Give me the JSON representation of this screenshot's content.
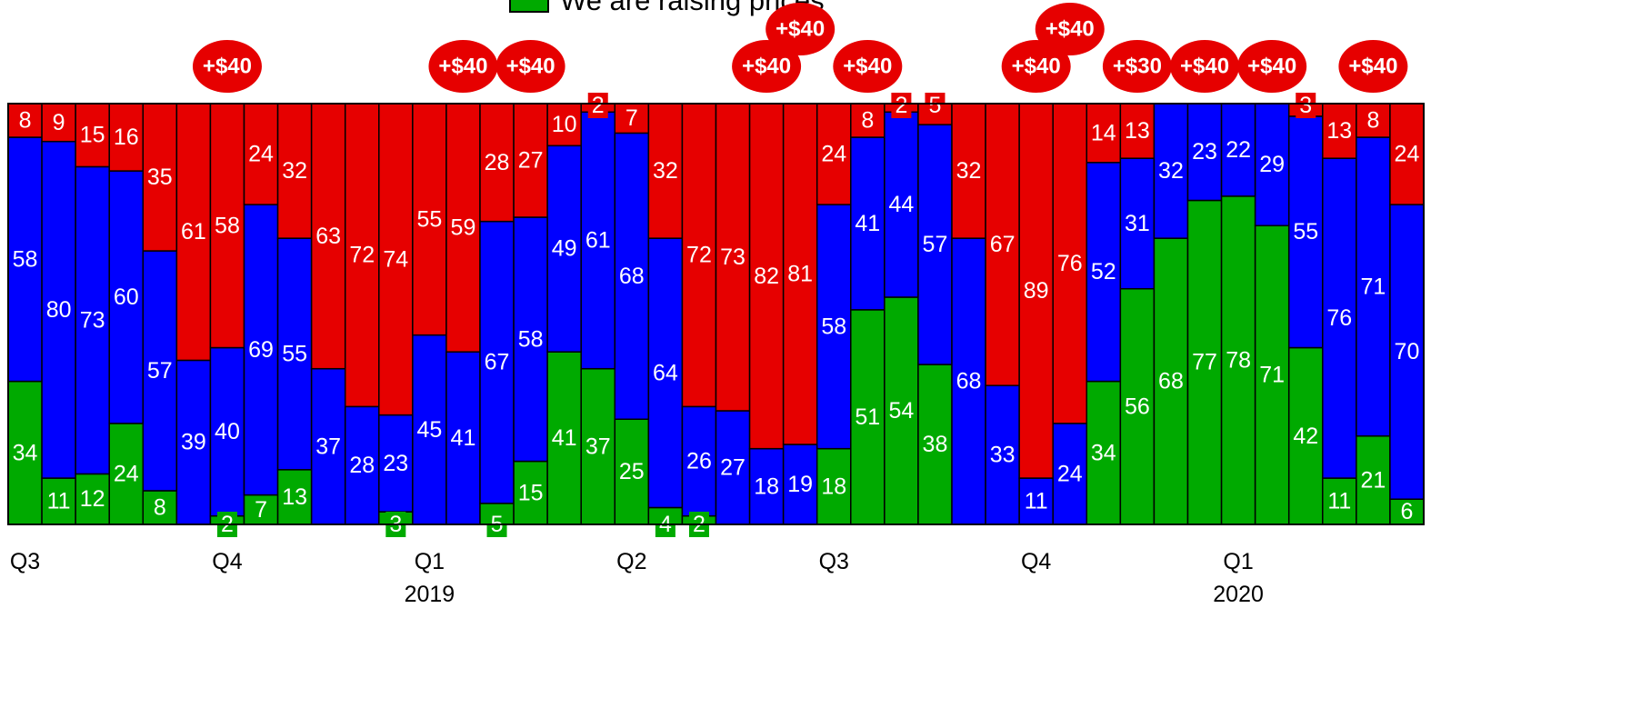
{
  "chart_data": {
    "type": "bar",
    "stacked": "100%",
    "legend": {
      "label": "We are raising prices",
      "color": "#00AA00",
      "placement": "top-center"
    },
    "colors": {
      "green": "#00AA00",
      "blue": "#0000FF",
      "red": "#E60000"
    },
    "series": [
      {
        "name": "We are raising prices",
        "color": "#00AA00",
        "values": [
          34,
          11,
          12,
          24,
          8,
          0,
          2,
          7,
          13,
          0,
          0,
          3,
          0,
          0,
          5,
          15,
          41,
          37,
          25,
          4,
          2,
          0,
          0,
          0,
          18,
          51,
          54,
          38,
          0,
          0,
          0,
          0,
          34,
          56,
          68,
          77,
          78,
          71,
          42,
          11,
          21,
          6
        ]
      },
      {
        "name": "",
        "color": "#0000FF",
        "values": [
          58,
          80,
          73,
          60,
          57,
          39,
          40,
          69,
          55,
          37,
          28,
          23,
          45,
          41,
          67,
          58,
          49,
          61,
          68,
          64,
          26,
          27,
          18,
          19,
          58,
          41,
          44,
          57,
          68,
          33,
          11,
          24,
          52,
          31,
          32,
          23,
          22,
          29,
          55,
          76,
          71,
          70
        ]
      },
      {
        "name": "",
        "color": "#E60000",
        "values": [
          8,
          9,
          15,
          16,
          35,
          61,
          58,
          24,
          32,
          63,
          72,
          74,
          55,
          59,
          28,
          27,
          10,
          2,
          7,
          32,
          72,
          73,
          82,
          81,
          24,
          8,
          2,
          5,
          32,
          67,
          89,
          76,
          14,
          13,
          0,
          0,
          0,
          0,
          3,
          13,
          8,
          24
        ]
      }
    ],
    "price_hikes": [
      {
        "bar": 6,
        "text": "+$40"
      },
      {
        "bar": 13,
        "text": "+$40"
      },
      {
        "bar": 15,
        "text": "+$40"
      },
      {
        "bar": 22,
        "text": "+$40"
      },
      {
        "bar": 23,
        "text": "+$40"
      },
      {
        "bar": 25,
        "text": "+$40"
      },
      {
        "bar": 30,
        "text": "+$40"
      },
      {
        "bar": 31,
        "text": "+$40"
      },
      {
        "bar": 33,
        "text": "+$30"
      },
      {
        "bar": 35,
        "text": "+$40"
      },
      {
        "bar": 37,
        "text": "+$40"
      },
      {
        "bar": 40,
        "text": "+$40"
      }
    ],
    "x_ticks": [
      {
        "bar": 0,
        "label": "Q3"
      },
      {
        "bar": 6,
        "label": "Q4"
      },
      {
        "bar": 12,
        "label": "Q1",
        "sublabel": "2019"
      },
      {
        "bar": 18,
        "label": "Q2"
      },
      {
        "bar": 24,
        "label": "Q3"
      },
      {
        "bar": 30,
        "label": "Q4"
      },
      {
        "bar": 36,
        "label": "Q1",
        "sublabel": "2020"
      }
    ],
    "ylim": [
      0,
      100
    ],
    "grid": false
  }
}
